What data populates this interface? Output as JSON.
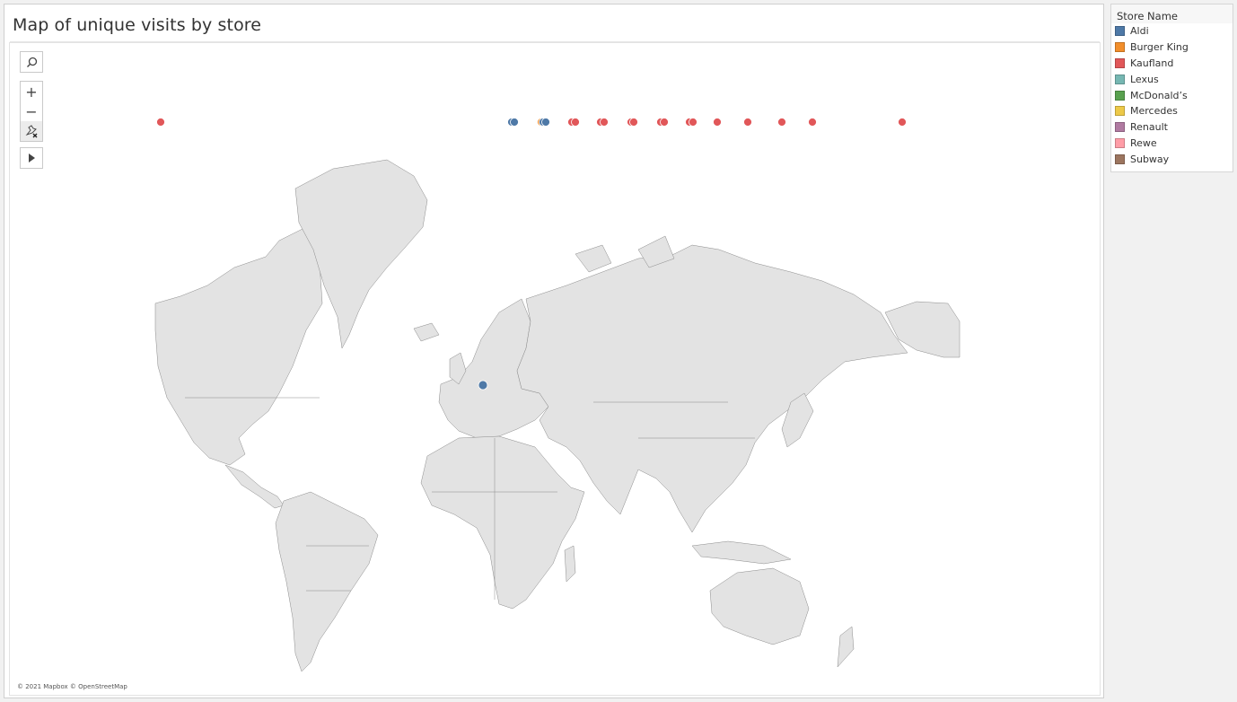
{
  "title": "Map of unique visits by store",
  "attribution": "© 2021 Mapbox © OpenStreetMap",
  "map_tools": {
    "search_icon": "search-icon",
    "zoom_in": "+",
    "zoom_out": "−",
    "pin": "pin-map-icon",
    "expand": "▸"
  },
  "legend": {
    "title": "Store Name",
    "items": [
      {
        "label": "Aldi",
        "color": "#4e79a7"
      },
      {
        "label": "Burger King",
        "color": "#f28e2b"
      },
      {
        "label": "Kaufland",
        "color": "#e15759"
      },
      {
        "label": "Lexus",
        "color": "#76b7b2"
      },
      {
        "label": "McDonald’s",
        "color": "#59a14f"
      },
      {
        "label": "Mercedes",
        "color": "#edc948"
      },
      {
        "label": "Renault",
        "color": "#b07aa1"
      },
      {
        "label": "Rewe",
        "color": "#ff9da7"
      },
      {
        "label": "Subway",
        "color": "#9c755f"
      }
    ]
  },
  "colors": {
    "land": "#e3e3e3",
    "border": "#7a7a7a",
    "aldi": "#4e79a7",
    "kaufland": "#e15759",
    "burger_king": "#f28e2b"
  }
}
